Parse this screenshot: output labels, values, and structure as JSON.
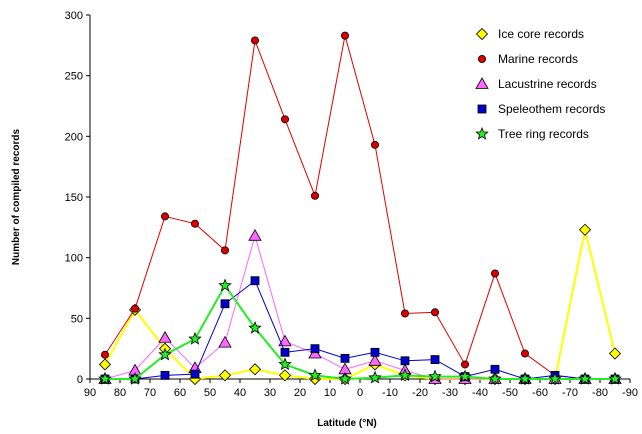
{
  "chart_data": {
    "type": "line",
    "title": "",
    "xlabel": "Latitude (°N)",
    "ylabel": "Number of compiled records",
    "x": [
      85,
      75,
      65,
      55,
      45,
      35,
      25,
      15,
      5,
      -5,
      -15,
      -25,
      -35,
      -45,
      -55,
      -65,
      -75,
      -85
    ],
    "x_ticks": [
      90,
      80,
      70,
      60,
      50,
      40,
      30,
      20,
      10,
      0,
      -10,
      -20,
      -30,
      -40,
      -50,
      -60,
      -70,
      -80,
      -90
    ],
    "x_tick_labels": [
      "90",
      "80",
      "70",
      "60",
      "50",
      "40",
      "30",
      "20",
      "10",
      "0",
      "-10",
      "-20",
      "-30",
      "-40",
      "-50",
      "-60",
      "-70",
      "-80",
      "-90"
    ],
    "xlim": [
      90,
      -90
    ],
    "ylim": [
      0,
      300
    ],
    "y_ticks": [
      0,
      50,
      100,
      150,
      200,
      250,
      300
    ],
    "y_tick_labels": [
      "0",
      "50",
      "100",
      "150",
      "200",
      "250",
      "300"
    ],
    "grid": false,
    "legend_position": "top-right",
    "series": [
      {
        "name": "Ice core records",
        "color": "#ffff00",
        "marker": "diamond",
        "values": [
          12,
          57,
          25,
          0,
          3,
          8,
          3,
          0,
          0,
          12,
          3,
          0,
          0,
          0,
          0,
          0,
          123,
          21
        ]
      },
      {
        "name": "Marine records",
        "color": "#dd0000",
        "marker": "circle",
        "values": [
          20,
          58,
          134,
          128,
          106,
          279,
          214,
          151,
          283,
          193,
          54,
          55,
          12,
          87,
          21,
          3,
          0,
          0
        ]
      },
      {
        "name": "Lacustrine records",
        "color": "#ff66ff",
        "marker": "triangle",
        "values": [
          0,
          7,
          34,
          9,
          30,
          118,
          31,
          21,
          8,
          15,
          7,
          0,
          0,
          0,
          0,
          0,
          0,
          0
        ]
      },
      {
        "name": "Speleothem records",
        "color": "#0000cc",
        "marker": "square",
        "values": [
          0,
          0,
          3,
          4,
          62,
          81,
          22,
          25,
          17,
          22,
          15,
          16,
          2,
          8,
          0,
          3,
          0,
          0
        ]
      },
      {
        "name": "Tree ring records",
        "color": "#22ee22",
        "marker": "star",
        "values": [
          0,
          0,
          20,
          33,
          77,
          42,
          12,
          3,
          0,
          1,
          3,
          2,
          2,
          0,
          0,
          0,
          0,
          0
        ]
      }
    ]
  }
}
